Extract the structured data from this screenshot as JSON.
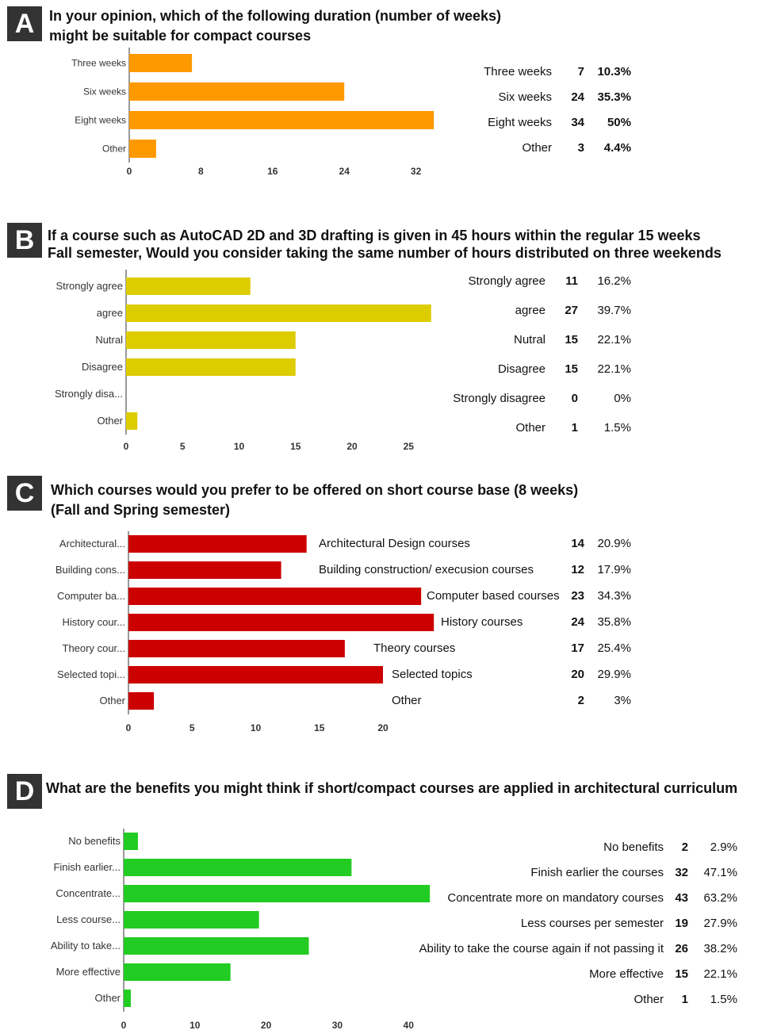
{
  "chart_data": [
    {
      "id": "A",
      "type": "bar",
      "badge": "A",
      "title_lines": [
        "In your opinion, which of the following duration (number of weeks)",
        "might be suitable for compact courses"
      ],
      "categories": [
        "Three weeks",
        "Six weeks",
        "Eight weeks",
        "Other"
      ],
      "values": [
        7,
        24,
        34,
        3
      ],
      "percents": [
        "10.3%",
        "35.3%",
        "50%",
        "4.4%"
      ],
      "table_labels": [
        "Three weeks",
        "Six weeks",
        "Eight weeks",
        "Other"
      ],
      "ticks": [
        0,
        8,
        16,
        24,
        32
      ],
      "color": "#FF9900"
    },
    {
      "id": "B",
      "type": "bar",
      "badge": "B",
      "title_lines": [
        "If a course such as AutoCAD 2D and 3D drafting is given in 45 hours within the regular 15 weeks",
        "Fall semester, Would you consider taking the same number of hours distributed on three weekends"
      ],
      "categories": [
        "Strongly agree",
        "agree",
        "Nutral",
        "Disagree",
        "Strongly disa...",
        "Other"
      ],
      "values": [
        11,
        27,
        15,
        15,
        0,
        1
      ],
      "percents": [
        "16.2%",
        "39.7%",
        "22.1%",
        "22.1%",
        "0%",
        "1.5%"
      ],
      "table_labels": [
        "Strongly agree",
        "agree",
        "Nutral",
        "Disagree",
        "Strongly disagree",
        "Other"
      ],
      "ticks": [
        0,
        5,
        10,
        15,
        20,
        25
      ],
      "color": "#DDCC00"
    },
    {
      "id": "C",
      "type": "bar",
      "badge": "C",
      "title_lines": [
        "Which courses would you prefer to be offered on short course base (8 weeks)",
        "(Fall and Spring semester)"
      ],
      "categories": [
        "Architectural...",
        "Building cons...",
        "Computer ba...",
        "History cour...",
        "Theory cour...",
        "Selected topi...",
        "Other"
      ],
      "values": [
        14,
        12,
        23,
        24,
        17,
        20,
        2
      ],
      "percents": [
        "20.9%",
        "17.9%",
        "34.3%",
        "35.8%",
        "25.4%",
        "29.9%",
        "3%"
      ],
      "table_labels": [
        "Architectural Design courses",
        "Building construction/ execusion courses",
        "Computer based courses",
        "History courses",
        "Theory courses",
        "Selected topics",
        "Other"
      ],
      "ticks": [
        0,
        5,
        10,
        15,
        20
      ],
      "color": "#CC0000"
    },
    {
      "id": "D",
      "type": "bar",
      "badge": "D",
      "title_lines": [
        "What are the benefits you might think if short/compact courses are applied in architectural curriculum"
      ],
      "categories": [
        "No benefits",
        "Finish earlier...",
        "Concentrate...",
        "Less course...",
        "Ability to take...",
        "More effective",
        "Other"
      ],
      "values": [
        2,
        32,
        43,
        19,
        26,
        15,
        1
      ],
      "percents": [
        "2.9%",
        "47.1%",
        "63.2%",
        "27.9%",
        "38.2%",
        "22.1%",
        "1.5%"
      ],
      "table_labels": [
        "No benefits",
        "Finish earlier the courses",
        "Concentrate more on mandatory courses",
        "Less courses per semester",
        "Ability to take the course again if not passing it",
        "More effective",
        "Other"
      ],
      "ticks": [
        0,
        10,
        20,
        30,
        40
      ],
      "color": "#22CC22"
    }
  ]
}
